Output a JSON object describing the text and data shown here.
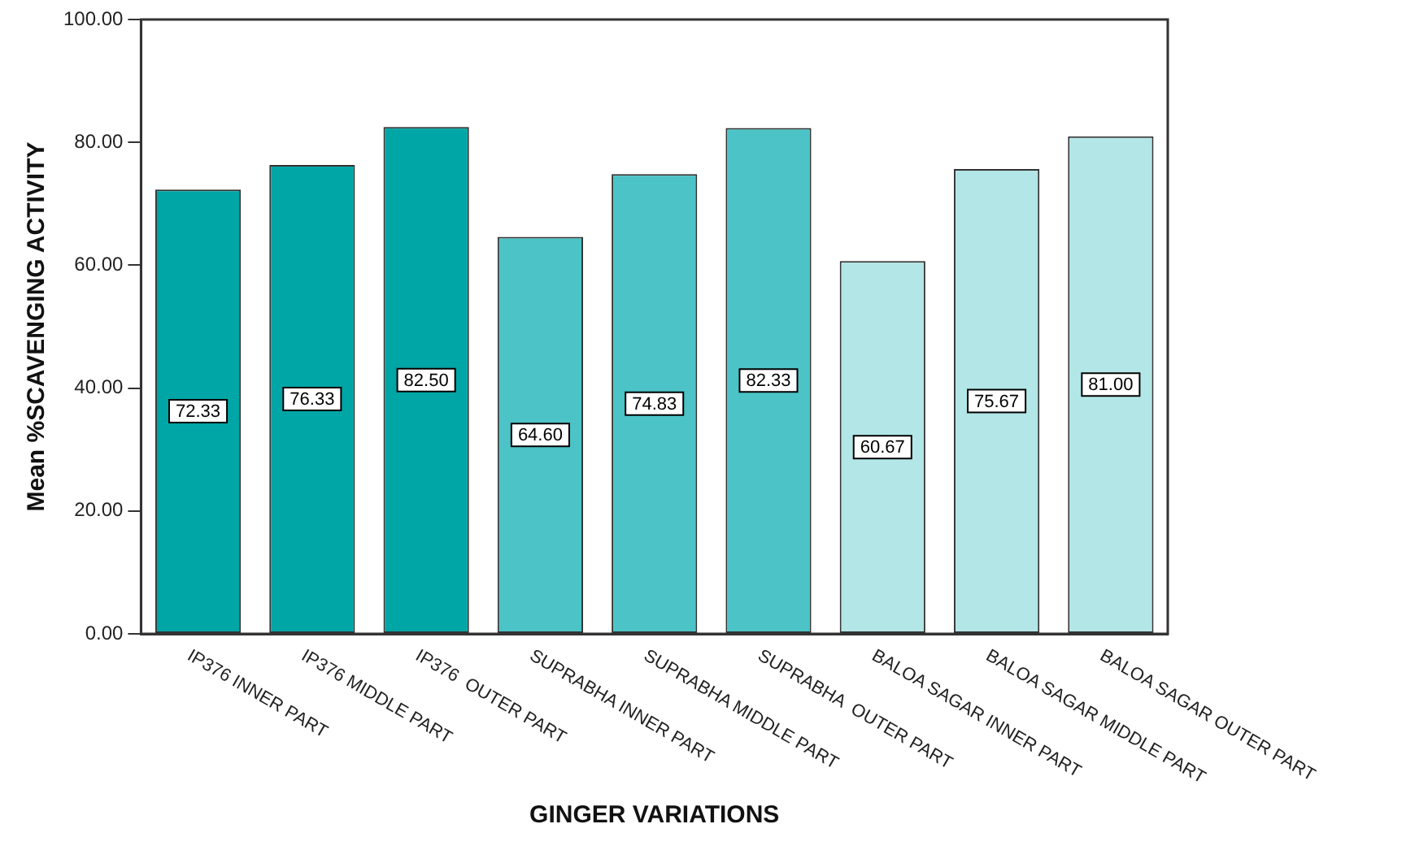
{
  "chart_data": {
    "type": "bar",
    "xlabel": "GINGER VARIATIONS",
    "ylabel": "Mean %SCAVENGING ACTIVITY",
    "categories": [
      "IP376 INNER PART",
      "IP376 MIDDLE PART",
      "IP376  OUTER PART",
      "SUPRABHA INNER PART",
      "SUPRABHA MIDDLE PART",
      "SUPRABHA  OUTER PART",
      "BALOA SAGAR INNER PART",
      "BALOA SAGAR MIDDLE PART",
      "BALOA SAGAR OUTER PART"
    ],
    "values": [
      72.33,
      76.33,
      82.5,
      64.6,
      74.83,
      82.33,
      60.67,
      75.67,
      81.0
    ],
    "value_labels": [
      "72.33",
      "76.33",
      "82.50",
      "64.60",
      "74.83",
      "82.33",
      "60.67",
      "75.67",
      "81.00"
    ],
    "colors": [
      "#00a5a5",
      "#00a5a5",
      "#00a5a5",
      "#4cc3c6",
      "#4cc3c6",
      "#4cc3c6",
      "#b3e6e6",
      "#b3e6e6",
      "#b3e6e6"
    ],
    "ylim": [
      0,
      100
    ],
    "yticks": [
      {
        "value": 0,
        "label": "0.00"
      },
      {
        "value": 20,
        "label": "20.00"
      },
      {
        "value": 40,
        "label": "40.00"
      },
      {
        "value": 60,
        "label": "60.00"
      },
      {
        "value": 80,
        "label": "80.00"
      },
      {
        "value": 100,
        "label": "100.00"
      }
    ],
    "grid": false,
    "legend": false
  }
}
